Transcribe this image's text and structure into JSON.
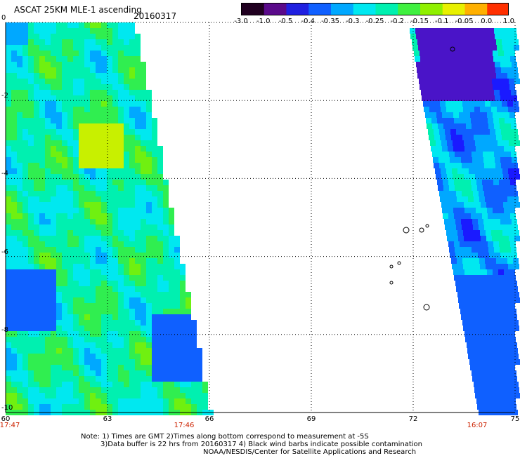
{
  "header": {
    "title": "ASCAT 25KM MLE-1 ascending",
    "date": "20160317"
  },
  "colorbar": {
    "labels": [
      "-3.0",
      "-1.0",
      "-0.5",
      "-0.4",
      "-0.35",
      "-0.3",
      "-0.25",
      "-0.2",
      "-0.15",
      "-0.1",
      "-0.05",
      "0.0",
      "1.0"
    ],
    "colors": [
      "#200020",
      "#5a0a8a",
      "#2020e0",
      "#1060ff",
      "#00a8ff",
      "#00e8f0",
      "#00f0b0",
      "#40f040",
      "#90f000",
      "#e8f000",
      "#ffb000",
      "#ff3000"
    ]
  },
  "axes": {
    "lat_ticks": [
      "0",
      "-2",
      "-4",
      "-6",
      "-8",
      "-10"
    ],
    "lon_ticks": [
      "60",
      "63",
      "66",
      "69",
      "72",
      "75"
    ],
    "time_labels": [
      "17:47",
      "17:46",
      "16:07"
    ]
  },
  "notes": {
    "line1": "Note: 1) Times are GMT 2)Times along bottom correspond to measurement at -5S",
    "line2": "3)Data buffer is 22 hrs from 20160317 4) Black wind barbs indicate possible contamination",
    "line3": "NOAA/NESDIS/Center for Satellite Applications and Research"
  }
}
